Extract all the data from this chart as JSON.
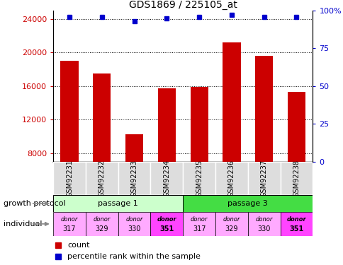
{
  "title": "GDS1869 / 225105_at",
  "samples": [
    "GSM92231",
    "GSM92232",
    "GSM92233",
    "GSM92234",
    "GSM92235",
    "GSM92236",
    "GSM92237",
    "GSM92238"
  ],
  "counts": [
    19000,
    17500,
    10300,
    15700,
    15900,
    21200,
    19600,
    15300
  ],
  "percentiles": [
    96,
    96,
    93,
    95,
    96,
    97,
    96,
    96
  ],
  "ylim_left": [
    7000,
    25000
  ],
  "ylim_right": [
    0,
    100
  ],
  "yticks_left": [
    8000,
    12000,
    16000,
    20000,
    24000
  ],
  "yticks_right": [
    0,
    25,
    50,
    75,
    100
  ],
  "bar_color": "#cc0000",
  "dot_color": "#0000cc",
  "passages": [
    {
      "label": "passage 1",
      "start": 0,
      "end": 4,
      "color": "#ccffcc"
    },
    {
      "label": "passage 3",
      "start": 4,
      "end": 8,
      "color": "#44dd44"
    }
  ],
  "individuals": [
    {
      "label": "donor\n317",
      "color": "#ffaaff",
      "bold": false
    },
    {
      "label": "donor\n329",
      "color": "#ffaaff",
      "bold": false
    },
    {
      "label": "donor\n330",
      "color": "#ffaaff",
      "bold": false
    },
    {
      "label": "donor\n351",
      "color": "#ff44ff",
      "bold": true
    },
    {
      "label": "donor\n317",
      "color": "#ffaaff",
      "bold": false
    },
    {
      "label": "donor\n329",
      "color": "#ffaaff",
      "bold": false
    },
    {
      "label": "donor\n330",
      "color": "#ffaaff",
      "bold": false
    },
    {
      "label": "donor\n351",
      "color": "#ff44ff",
      "bold": true
    }
  ],
  "legend_items": [
    {
      "label": "count",
      "color": "#cc0000"
    },
    {
      "label": "percentile rank within the sample",
      "color": "#0000cc"
    }
  ],
  "left_label_color": "#cc0000",
  "right_label_color": "#0000cc",
  "growth_protocol_label": "growth protocol",
  "individual_label": "individual",
  "xtick_bg": "#dddddd"
}
